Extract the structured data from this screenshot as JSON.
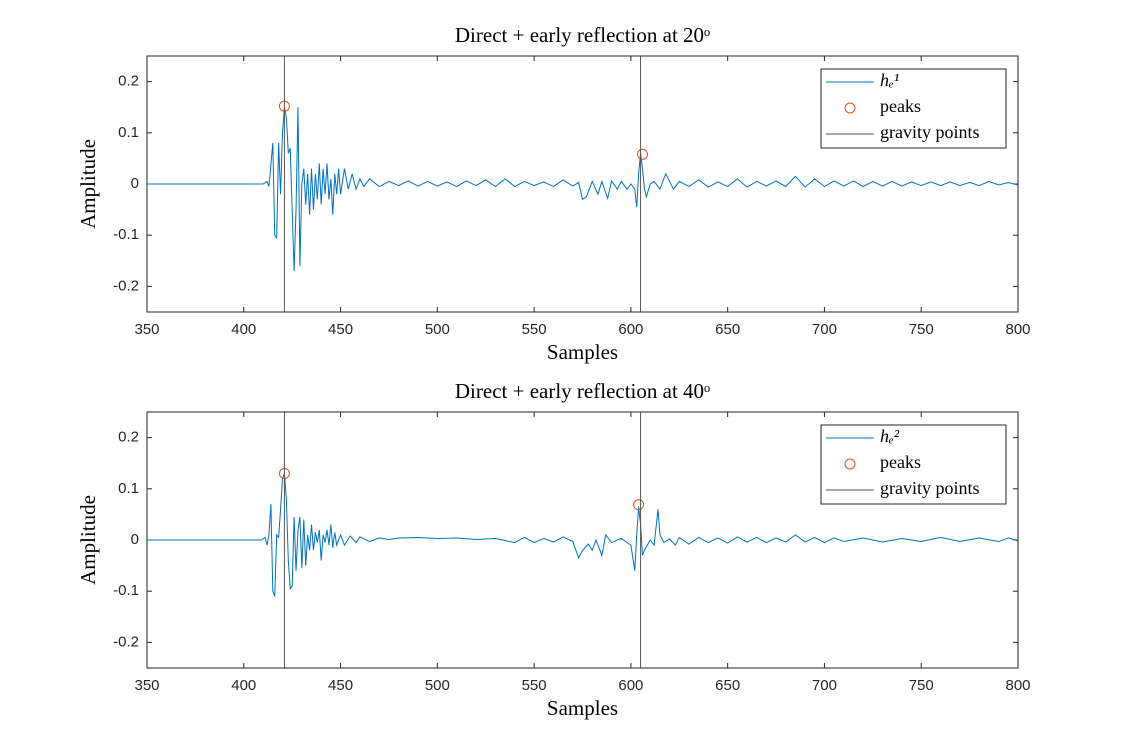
{
  "chart_data": [
    {
      "type": "line",
      "title": "Direct + early reflection at 20ᵒ",
      "xlabel": "Samples",
      "ylabel": "Amplitude",
      "x": [
        350,
        400,
        410,
        412,
        413,
        415,
        416,
        417,
        418,
        419,
        420,
        421,
        422,
        423,
        424,
        425,
        426,
        427,
        428,
        429,
        430,
        431,
        432,
        433,
        434,
        435,
        436,
        437,
        438,
        439,
        440,
        441,
        442,
        443,
        444,
        445,
        446,
        447,
        448,
        449,
        450,
        452,
        454,
        456,
        458,
        460,
        462,
        465,
        470,
        475,
        480,
        485,
        490,
        495,
        500,
        505,
        510,
        515,
        520,
        525,
        530,
        535,
        540,
        545,
        550,
        555,
        560,
        565,
        570,
        573,
        575,
        577,
        580,
        583,
        585,
        588,
        590,
        593,
        595,
        598,
        600,
        602,
        603,
        604,
        605,
        606,
        607,
        608,
        610,
        612,
        615,
        618,
        620,
        622,
        625,
        630,
        635,
        640,
        645,
        650,
        655,
        660,
        665,
        670,
        675,
        680,
        685,
        690,
        695,
        700,
        705,
        710,
        715,
        720,
        725,
        730,
        735,
        740,
        745,
        750,
        755,
        760,
        765,
        770,
        775,
        780,
        785,
        790,
        795,
        800
      ],
      "series": [
        {
          "name": "hₑ¹",
          "color": "#0072bd",
          "values": [
            0,
            0,
            0,
            0.005,
            -0.005,
            0.08,
            -0.1,
            -0.105,
            0.08,
            -0.02,
            0.1,
            0.15,
            0.13,
            0.06,
            0.07,
            -0.05,
            -0.17,
            -0.05,
            0.15,
            -0.16,
            0,
            0.03,
            -0.04,
            0.02,
            -0.06,
            0.03,
            -0.05,
            0.02,
            -0.03,
            0.04,
            -0.04,
            0.03,
            -0.02,
            0.04,
            -0.03,
            0.01,
            -0.06,
            0.02,
            -0.02,
            0.03,
            -0.02,
            0.03,
            -0.01,
            0.02,
            -0.01,
            0.01,
            -0.005,
            0.01,
            -0.005,
            0.005,
            -0.003,
            0.006,
            -0.004,
            0.005,
            -0.004,
            0.004,
            -0.005,
            0.006,
            -0.003,
            0.008,
            -0.005,
            0.01,
            -0.005,
            0.005,
            -0.003,
            0.004,
            -0.005,
            0.008,
            -0.004,
            0.003,
            -0.03,
            -0.025,
            0.005,
            -0.02,
            0.005,
            -0.028,
            0.006,
            -0.01,
            0.005,
            -0.01,
            0,
            -0.01,
            -0.045,
            0.02,
            0.06,
            0.03,
            -0.01,
            -0.025,
            0,
            0.005,
            -0.01,
            0.02,
            0.005,
            -0.01,
            0.005,
            -0.005,
            0.008,
            -0.006,
            0.004,
            -0.005,
            0.01,
            -0.006,
            0.005,
            -0.004,
            0.006,
            -0.005,
            0.015,
            -0.006,
            0.01,
            -0.005,
            0.006,
            -0.004,
            0.006,
            -0.005,
            0.005,
            -0.004,
            0.005,
            -0.004,
            0.004,
            -0.003,
            0.004,
            -0.003,
            0.004,
            -0.003,
            0.003,
            -0.003,
            0.005,
            -0.002,
            0.003,
            -0.002
          ]
        },
        {
          "name": "peaks",
          "type": "scatter",
          "color": "#d95319",
          "x": [
            421,
            606
          ],
          "values": [
            0.152,
            0.058
          ]
        }
      ],
      "vlines": {
        "name": "gravity points",
        "color": "#555555",
        "x": [
          421,
          605
        ]
      },
      "xlim": [
        350,
        800
      ],
      "ylim": [
        -0.25,
        0.25
      ],
      "xticks": [
        350,
        400,
        450,
        500,
        550,
        600,
        650,
        700,
        750,
        800
      ],
      "yticks": [
        -0.2,
        -0.1,
        0,
        0.1,
        0.2
      ],
      "legend": "upper right"
    },
    {
      "type": "line",
      "title": "Direct + early reflection at 40ᵒ",
      "xlabel": "Samples",
      "ylabel": "Amplitude",
      "x": [
        350,
        400,
        409,
        411,
        412,
        413,
        414,
        415,
        416,
        417,
        418,
        419,
        420,
        421,
        422,
        423,
        424,
        425,
        426,
        427,
        428,
        429,
        430,
        431,
        432,
        433,
        434,
        435,
        436,
        437,
        438,
        439,
        440,
        441,
        442,
        443,
        444,
        445,
        446,
        447,
        448,
        450,
        452,
        455,
        458,
        460,
        465,
        470,
        475,
        480,
        490,
        500,
        510,
        520,
        530,
        540,
        545,
        550,
        555,
        560,
        565,
        570,
        573,
        575,
        578,
        580,
        582,
        585,
        587,
        590,
        595,
        600,
        602,
        603,
        604,
        605,
        606,
        607,
        610,
        612,
        614,
        615,
        617,
        620,
        623,
        625,
        630,
        635,
        640,
        645,
        650,
        655,
        660,
        665,
        670,
        675,
        680,
        685,
        690,
        695,
        700,
        705,
        710,
        720,
        730,
        740,
        750,
        760,
        770,
        780,
        790,
        795,
        800
      ],
      "series": [
        {
          "name": "hₑ²",
          "color": "#0072bd",
          "values": [
            0,
            0,
            0,
            0.005,
            -0.01,
            0.01,
            0.07,
            -0.1,
            -0.11,
            0.01,
            0.005,
            0.06,
            0.12,
            0.13,
            0.08,
            -0.04,
            -0.095,
            -0.09,
            0.045,
            -0.06,
            0.02,
            0.045,
            -0.055,
            0.04,
            -0.05,
            0.01,
            -0.02,
            0.03,
            -0.02,
            0.015,
            -0.005,
            0.02,
            -0.04,
            0.01,
            -0.005,
            0.02,
            -0.01,
            0.03,
            -0.015,
            0.015,
            -0.01,
            0.01,
            -0.01,
            0.008,
            -0.005,
            0.006,
            -0.003,
            0.004,
            0.001,
            0.004,
            0.005,
            0.003,
            0.004,
            0.001,
            0.003,
            -0.005,
            0.005,
            -0.005,
            0.003,
            -0.004,
            0.006,
            -0.003,
            -0.035,
            -0.02,
            -0.008,
            -0.02,
            0,
            -0.03,
            0.01,
            -0.005,
            0.003,
            -0.01,
            -0.06,
            0.01,
            0.065,
            0.03,
            -0.03,
            -0.02,
            0,
            -0.01,
            0.06,
            0.01,
            -0.005,
            0.002,
            -0.01,
            0.005,
            -0.008,
            0.005,
            -0.005,
            0.004,
            -0.006,
            0.006,
            -0.004,
            0.005,
            -0.005,
            0.004,
            -0.004,
            0.01,
            -0.004,
            0.005,
            -0.005,
            0.004,
            -0.003,
            0.004,
            -0.004,
            0.003,
            -0.003,
            0.005,
            -0.003,
            0.004,
            -0.003,
            0.004,
            -0.002
          ]
        },
        {
          "name": "peaks",
          "type": "scatter",
          "color": "#d95319",
          "x": [
            421,
            604
          ],
          "values": [
            0.13,
            0.069
          ]
        }
      ],
      "vlines": {
        "name": "gravity points",
        "color": "#555555",
        "x": [
          421,
          605
        ]
      },
      "xlim": [
        350,
        800
      ],
      "ylim": [
        -0.25,
        0.25
      ],
      "xticks": [
        350,
        400,
        450,
        500,
        550,
        600,
        650,
        700,
        750,
        800
      ],
      "yticks": [
        -0.2,
        -0.1,
        0,
        0.1,
        0.2
      ],
      "legend": "upper right"
    }
  ]
}
